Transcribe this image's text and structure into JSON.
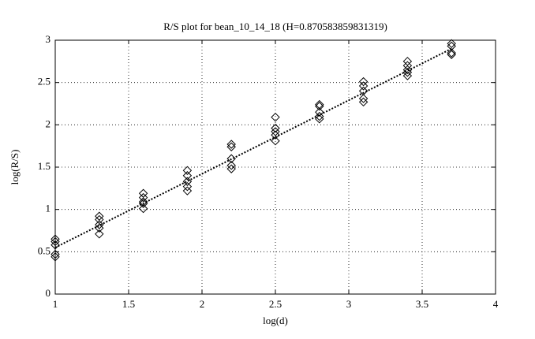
{
  "chart_data": {
    "type": "scatter",
    "title": "R/S plot for bean_10_14_18 (H=0.870583859831319)",
    "xlabel": "log(d)",
    "ylabel": "log(R/S)",
    "xlim": [
      1,
      4
    ],
    "ylim": [
      0,
      3
    ],
    "xticks": [
      1,
      1.5,
      2,
      2.5,
      3,
      3.5,
      4
    ],
    "yticks": [
      0,
      0.5,
      1,
      1.5,
      2,
      2.5,
      3
    ],
    "grid": true,
    "series": [
      {
        "marker": "diamond",
        "color": "#000000",
        "x": [
          1,
          1,
          1,
          1,
          1,
          1.3,
          1.3,
          1.3,
          1.3,
          1.3,
          1.6,
          1.6,
          1.6,
          1.6,
          1.6,
          1.9,
          1.9,
          1.9,
          1.9,
          1.9,
          2.2,
          2.2,
          2.2,
          2.2,
          2.2,
          2.5,
          2.5,
          2.5,
          2.5,
          2.5,
          2.8,
          2.8,
          2.8,
          2.8,
          2.8,
          3.1,
          3.1,
          3.1,
          3.1,
          3.1,
          3.4,
          3.4,
          3.4,
          3.4,
          3.4,
          3.7,
          3.7,
          3.7,
          3.7
        ],
        "values": [
          0.65,
          0.62,
          0.58,
          0.47,
          0.44,
          0.92,
          0.88,
          0.82,
          0.78,
          0.71,
          1.19,
          1.14,
          1.09,
          1.07,
          1.01,
          1.46,
          1.4,
          1.33,
          1.27,
          1.22,
          1.77,
          1.74,
          1.6,
          1.52,
          1.48,
          2.09,
          1.96,
          1.92,
          1.88,
          1.81,
          2.24,
          2.22,
          2.15,
          2.1,
          2.07,
          2.51,
          2.46,
          2.4,
          2.31,
          2.27,
          2.75,
          2.7,
          2.65,
          2.62,
          2.58,
          2.96,
          2.93,
          2.85,
          2.83
        ]
      },
      {
        "marker": "dotted-line",
        "color": "#000000",
        "x": [
          1,
          3.7
        ],
        "values": [
          0.55,
          2.9
        ]
      }
    ]
  }
}
